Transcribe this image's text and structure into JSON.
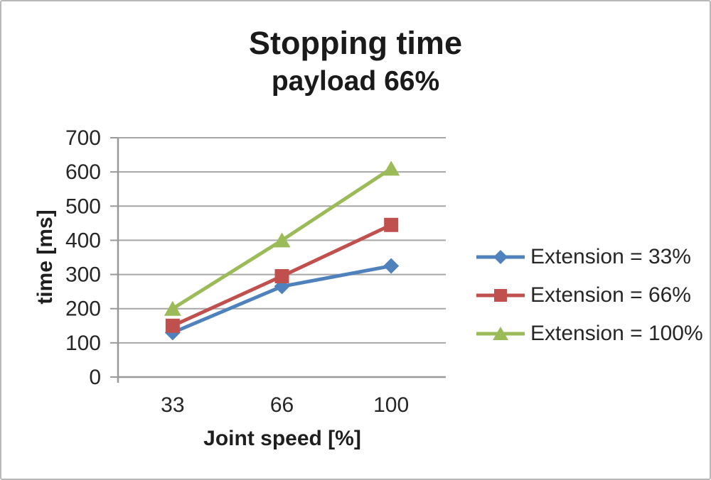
{
  "window": {
    "background": "#ffffff",
    "border_color": "#b9b9b9"
  },
  "chart_data": {
    "type": "line",
    "title": "Stopping time",
    "subtitle": "payload 66%",
    "xlabel": "Joint speed [%]",
    "ylabel": "time [ms]",
    "categories": [
      "33",
      "66",
      "100"
    ],
    "series": [
      {
        "name": "Extension = 33%",
        "marker": "diamond",
        "color": "#4F81BD",
        "values": [
          130,
          265,
          325
        ]
      },
      {
        "name": "Extension = 66%",
        "marker": "square",
        "color": "#C0504D",
        "values": [
          150,
          295,
          445
        ]
      },
      {
        "name": "Extension = 100%",
        "marker": "triangle",
        "color": "#9BBB59",
        "values": [
          200,
          400,
          610
        ]
      }
    ],
    "ylim": [
      0,
      700
    ],
    "yticks": [
      0,
      100,
      200,
      300,
      400,
      500,
      600,
      700
    ],
    "grid": true,
    "legend_position": "right",
    "colors": {
      "gridline": "#a6a6a6",
      "axis": "#999999",
      "tick_text": "#262626",
      "title_text": "#1a1a1a"
    }
  }
}
